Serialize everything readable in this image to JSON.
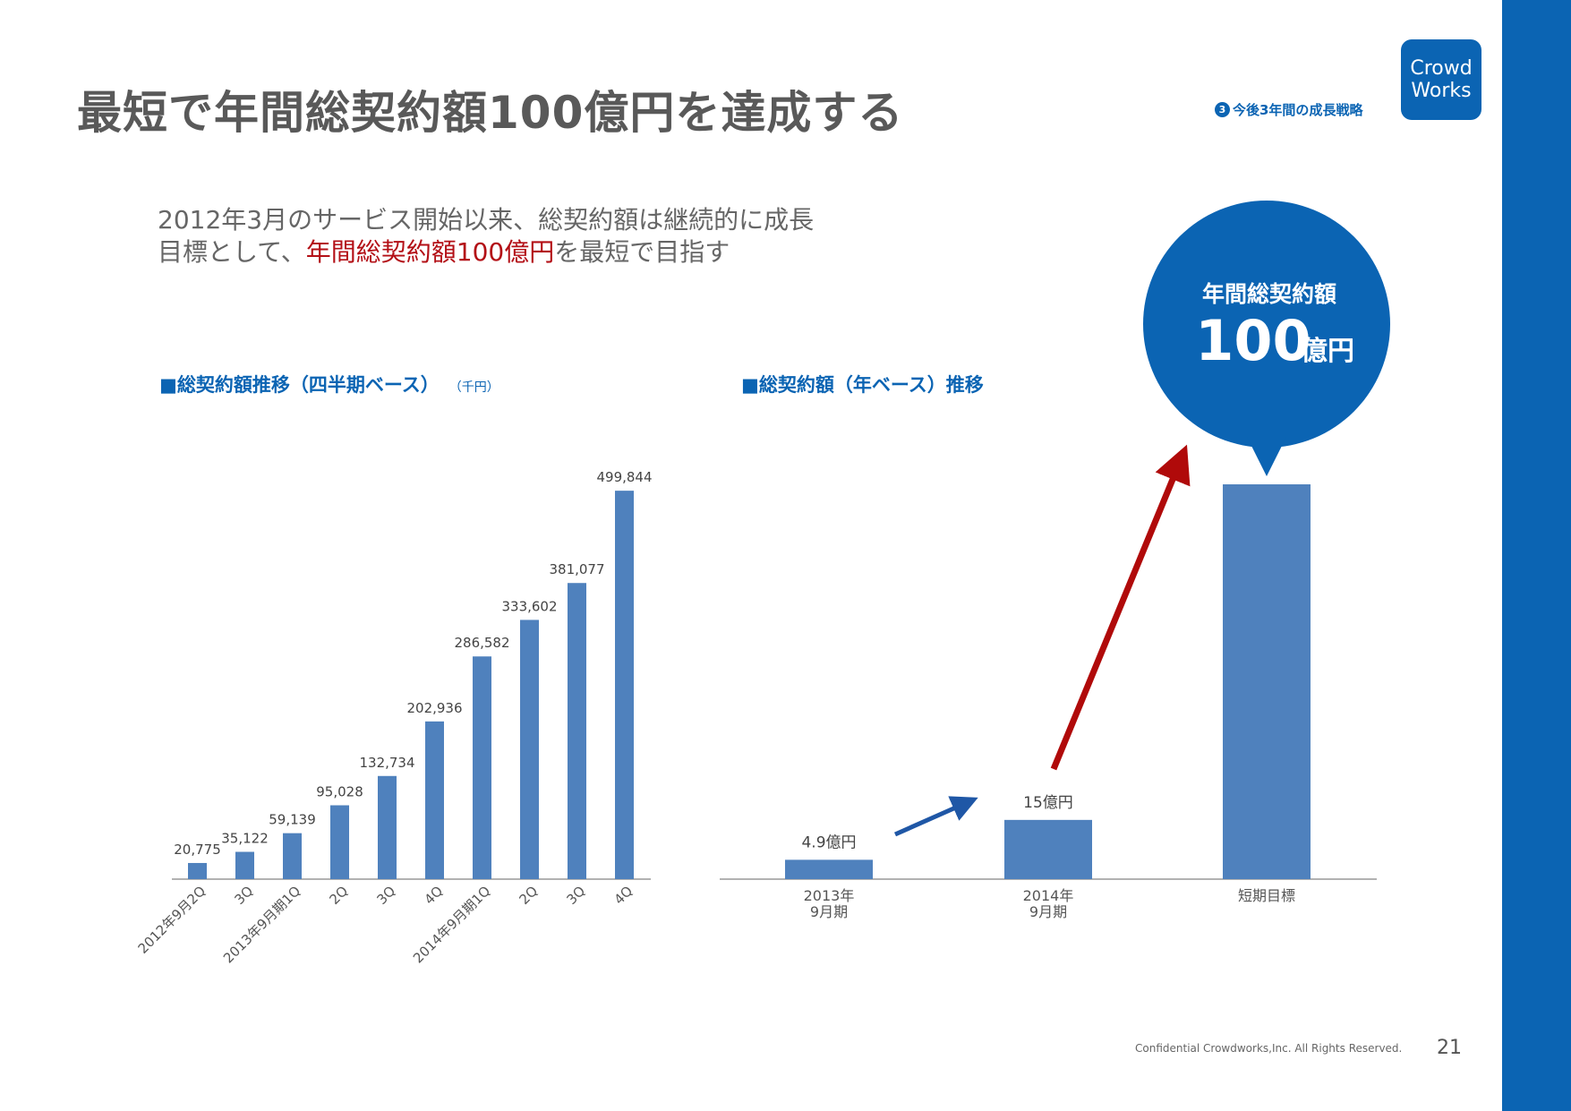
{
  "header": {
    "title": "最短で年間総契約額100億円を達成する",
    "section_number": "3",
    "section_label": "今後3年間の成長戦略",
    "logo_line1": "Crowd",
    "logo_line2": "Works"
  },
  "intro": {
    "line1": "2012年3月のサービス開始以来、総契約額は継続的に成長",
    "line2_prefix": "目標として、",
    "line2_highlight": "年間総契約額100億円",
    "line2_suffix": "を最短で目指す"
  },
  "bubble": {
    "label": "年間総契約額",
    "value": "100",
    "unit": "億円"
  },
  "chart_data": [
    {
      "type": "bar",
      "title": "■総契約額推移（四半期ベース）",
      "unit": "（千円）",
      "categories": [
        "2012年9月2Q",
        "3Q",
        "2013年9月期1Q",
        "2Q",
        "3Q",
        "4Q",
        "2014年9月期1Q",
        "2Q",
        "3Q",
        "4Q"
      ],
      "values": [
        20775,
        35122,
        59139,
        95028,
        132734,
        202936,
        286582,
        333602,
        381077,
        499844
      ],
      "value_labels": [
        "20,775",
        "35,122",
        "59,139",
        "95,028",
        "132,734",
        "202,936",
        "286,582",
        "333,602",
        "381,077",
        "499,844"
      ],
      "ylim": [
        0,
        500000
      ],
      "grid": false,
      "legend": "none",
      "color": "#4f81bd"
    },
    {
      "type": "bar",
      "title": "■総契約額（年ベース）推移",
      "categories": [
        "2013年\n9月期",
        "2014年\n9月期",
        "短期目標"
      ],
      "values": [
        4.9,
        15,
        100
      ],
      "value_labels": [
        "4.9億円",
        "15億円",
        ""
      ],
      "ylim": [
        0,
        100
      ],
      "grid": false,
      "legend": "none",
      "color": "#4f81bd"
    }
  ],
  "colors": {
    "accent_blue": "#0b64b3",
    "bar_blue": "#4f81bd",
    "highlight_red": "#b30f16",
    "arrow_red": "#b00a0a",
    "arrow_blue": "#1f57a6"
  },
  "footer": {
    "copyright": "Confidential Crowdworks,Inc. All Rights Reserved.",
    "page": "21"
  }
}
